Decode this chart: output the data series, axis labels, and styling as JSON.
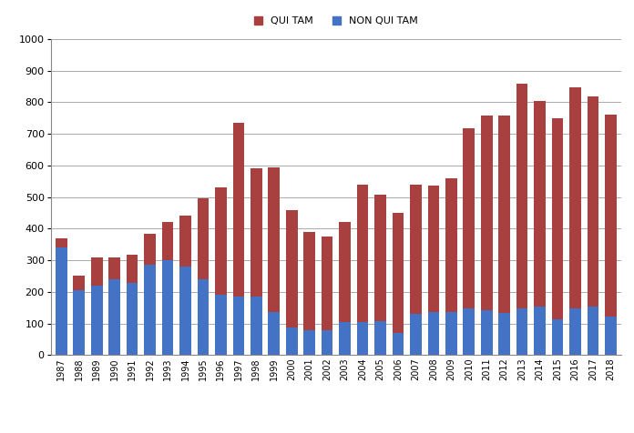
{
  "years": [
    1987,
    1988,
    1989,
    1990,
    1991,
    1992,
    1993,
    1994,
    1995,
    1996,
    1997,
    1998,
    1999,
    2000,
    2001,
    2002,
    2003,
    2004,
    2005,
    2006,
    2007,
    2008,
    2009,
    2010,
    2011,
    2012,
    2013,
    2014,
    2015,
    2016,
    2017,
    2018
  ],
  "qui_tam": [
    30,
    45,
    90,
    70,
    90,
    100,
    120,
    160,
    255,
    340,
    550,
    405,
    460,
    370,
    310,
    295,
    315,
    435,
    400,
    380,
    410,
    400,
    425,
    570,
    615,
    625,
    710,
    650,
    635,
    700,
    665,
    640
  ],
  "non_qui_tam": [
    340,
    205,
    220,
    240,
    228,
    285,
    300,
    280,
    240,
    190,
    185,
    185,
    135,
    88,
    80,
    80,
    105,
    105,
    107,
    70,
    130,
    135,
    135,
    147,
    142,
    133,
    148,
    153,
    113,
    148,
    153,
    122
  ],
  "qui_tam_color": "#a94040",
  "non_qui_tam_color": "#4472c4",
  "ylim": [
    0,
    1000
  ],
  "yticks": [
    0,
    100,
    200,
    300,
    400,
    500,
    600,
    700,
    800,
    900,
    1000
  ],
  "legend_qui_tam": "QUI TAM",
  "legend_non_qui_tam": "NON QUI TAM",
  "bar_width": 0.65,
  "background_color": "#ffffff",
  "grid_color": "#aaaaaa",
  "figwidth": 6.96,
  "figheight": 4.76,
  "dpi": 100
}
